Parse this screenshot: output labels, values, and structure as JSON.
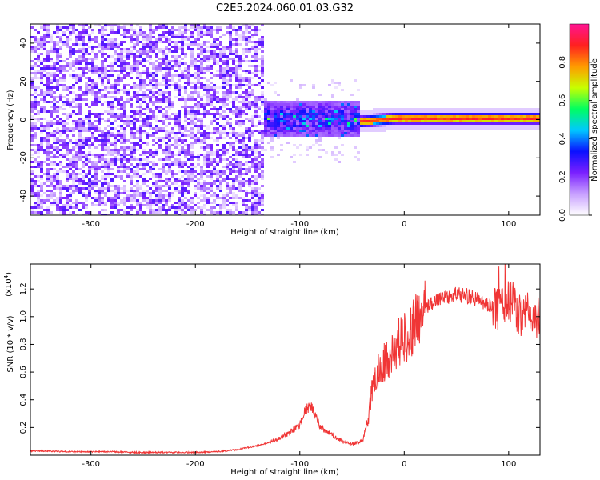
{
  "title": "C2E5.2024.060.01.03.G32",
  "chart_data": [
    {
      "type": "heatmap",
      "xlabel": "Height of straight line (km)",
      "ylabel": "Frequency (Hz)",
      "xlim": [
        -358,
        130
      ],
      "ylim": [
        -50,
        50
      ],
      "x_ticks": [
        -300,
        -200,
        -100,
        0,
        100
      ],
      "y_ticks": [
        -40,
        -20,
        0,
        20,
        40
      ],
      "colorbar": {
        "label": "Normalized spectral amplitude",
        "range": [
          0,
          1
        ],
        "ticks": [
          0.0,
          0.2,
          0.4,
          0.6,
          0.8
        ],
        "colors": [
          "#ffffff",
          "#c8a0ff",
          "#7a20ff",
          "#0a10ff",
          "#00c8ff",
          "#00ff60",
          "#c8ff00",
          "#ff9a00",
          "#ff2020",
          "#ff1493"
        ]
      },
      "regions": [
        {
          "x_range": [
            -358,
            -135
          ],
          "freq_range": [
            -50,
            50
          ],
          "amplitude": 0.1
        },
        {
          "x_range": [
            -135,
            -45
          ],
          "freq_range": [
            -8,
            10
          ],
          "amplitude": 0.25
        },
        {
          "x_range": [
            -45,
            130
          ],
          "freq_range": [
            0,
            3
          ],
          "amplitude": 0.9
        }
      ]
    },
    {
      "type": "line",
      "xlabel": "Height of straight line (km)",
      "ylabel": "SNR (10 * v/v)",
      "multiplier": "(x10",
      "multiplier_exp": "4",
      "multiplier_close": ")",
      "xlim": [
        -358,
        130
      ],
      "ylim": [
        0,
        1.38
      ],
      "x_ticks": [
        -300,
        -200,
        -100,
        0,
        100
      ],
      "y_ticks": [
        0.2,
        0.4,
        0.6,
        0.8,
        1.0,
        1.2
      ],
      "color": "#f03535",
      "series": [
        {
          "x": [
            -358,
            -340,
            -320,
            -300,
            -280,
            -260,
            -240,
            -220,
            -200,
            -180,
            -160,
            -140,
            -130,
            -120,
            -110,
            -100,
            -95,
            -90,
            -85,
            -80,
            -70,
            -60,
            -50,
            -40,
            -35,
            -30,
            -25,
            -20,
            -15,
            -10,
            -5,
            0,
            5,
            10,
            15,
            20,
            30,
            40,
            50,
            60,
            70,
            80,
            90,
            95,
            100,
            105,
            110,
            115,
            120,
            125,
            130
          ],
          "y": [
            0.03,
            0.03,
            0.025,
            0.025,
            0.025,
            0.02,
            0.02,
            0.02,
            0.02,
            0.025,
            0.04,
            0.07,
            0.09,
            0.12,
            0.16,
            0.22,
            0.32,
            0.36,
            0.28,
            0.2,
            0.15,
            0.1,
            0.08,
            0.1,
            0.25,
            0.5,
            0.6,
            0.68,
            0.7,
            0.75,
            0.82,
            0.85,
            0.88,
            0.95,
            1.0,
            1.06,
            1.12,
            1.15,
            1.16,
            1.15,
            1.12,
            1.08,
            1.05,
            1.15,
            1.08,
            1.1,
            1.02,
            1.0,
            1.02,
            1.0,
            0.99
          ]
        }
      ]
    }
  ]
}
